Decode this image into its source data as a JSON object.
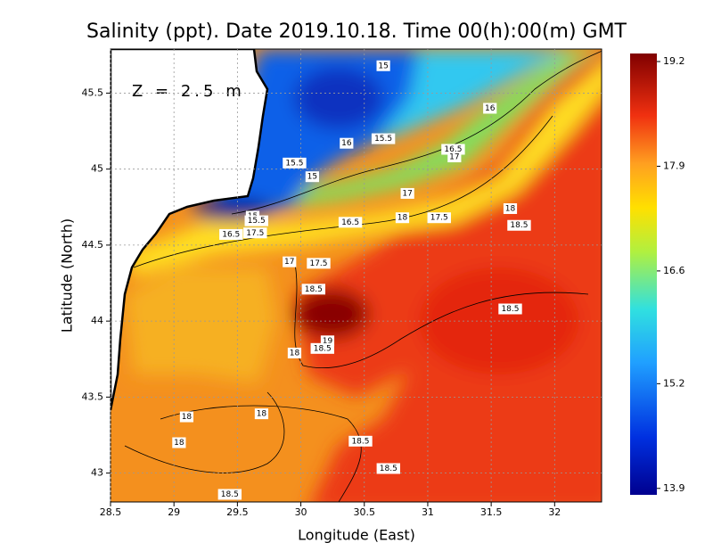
{
  "chart_data": {
    "type": "heatmap",
    "title": "Salinity (ppt). Date 2019.10.18. Time 00(h):00(m) GMT",
    "annotation": "Z = 2.5 m",
    "x_label": "Longitude (East)",
    "y_label": "Latitude (North)",
    "xlim": [
      28.5,
      32.37
    ],
    "ylim": [
      42.81,
      45.79
    ],
    "xticks": [
      28.5,
      29,
      29.5,
      30,
      30.5,
      31,
      31.5,
      32
    ],
    "yticks": [
      43,
      43.5,
      44,
      44.5,
      45,
      45.5
    ],
    "grid": true,
    "clim": [
      13.82,
      19.3
    ],
    "cticks": [
      13.9,
      15.2,
      16.6,
      17.9,
      19.2
    ],
    "contour_labels": [
      {
        "value": 15,
        "x": 30.65,
        "y": 45.68
      },
      {
        "value": 16,
        "x": 31.49,
        "y": 45.4
      },
      {
        "value": 16,
        "x": 30.36,
        "y": 45.17
      },
      {
        "value": 15.5,
        "x": 30.65,
        "y": 45.2
      },
      {
        "value": 16.5,
        "x": 31.2,
        "y": 45.13
      },
      {
        "value": 17,
        "x": 31.21,
        "y": 45.08
      },
      {
        "value": 15.5,
        "x": 29.95,
        "y": 45.04
      },
      {
        "value": 15,
        "x": 30.09,
        "y": 44.95
      },
      {
        "value": 17,
        "x": 30.84,
        "y": 44.84
      },
      {
        "value": 15,
        "x": 29.62,
        "y": 44.69
      },
      {
        "value": 15.5,
        "x": 29.65,
        "y": 44.66
      },
      {
        "value": 16.5,
        "x": 29.45,
        "y": 44.57
      },
      {
        "value": 17.5,
        "x": 29.64,
        "y": 44.58
      },
      {
        "value": 16.5,
        "x": 30.39,
        "y": 44.65
      },
      {
        "value": 18,
        "x": 30.8,
        "y": 44.68
      },
      {
        "value": 17.5,
        "x": 31.09,
        "y": 44.68
      },
      {
        "value": 18,
        "x": 31.65,
        "y": 44.74
      },
      {
        "value": 18.5,
        "x": 31.72,
        "y": 44.63
      },
      {
        "value": 17,
        "x": 29.91,
        "y": 44.39
      },
      {
        "value": 17.5,
        "x": 30.14,
        "y": 44.38
      },
      {
        "value": 18.5,
        "x": 30.1,
        "y": 44.21
      },
      {
        "value": 18.5,
        "x": 31.65,
        "y": 44.08
      },
      {
        "value": 19,
        "x": 30.21,
        "y": 43.87
      },
      {
        "value": 18.5,
        "x": 30.17,
        "y": 43.82
      },
      {
        "value": 18,
        "x": 29.95,
        "y": 43.79
      },
      {
        "value": 18,
        "x": 29.1,
        "y": 43.37
      },
      {
        "value": 18,
        "x": 29.69,
        "y": 43.39
      },
      {
        "value": 18,
        "x": 29.04,
        "y": 43.2
      },
      {
        "value": 18.5,
        "x": 30.47,
        "y": 43.21
      },
      {
        "value": 18.5,
        "x": 30.69,
        "y": 43.03
      },
      {
        "value": 18.5,
        "x": 29.44,
        "y": 42.86
      }
    ]
  }
}
